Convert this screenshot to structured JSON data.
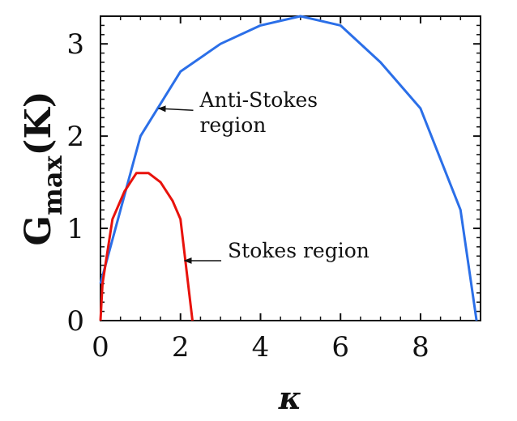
{
  "chart_data": {
    "type": "line",
    "title": "",
    "xlabel": "κ",
    "ylabel": {
      "main": "G",
      "subscript": "max",
      "suffix": "(K)"
    },
    "xlim": [
      0,
      9.5
    ],
    "ylim": [
      0,
      3.3
    ],
    "xticks": [
      0,
      2,
      4,
      6,
      8
    ],
    "xtick_labels": [
      "0",
      "2",
      "4",
      "6",
      "8"
    ],
    "yticks": [
      0,
      1,
      2,
      3
    ],
    "ytick_labels": [
      "0",
      "1",
      "2",
      "3"
    ],
    "grid": false,
    "legend": false,
    "series": [
      {
        "color": "#2b6fe8",
        "x": [
          0,
          1,
          2,
          3,
          4,
          5,
          6,
          7,
          8,
          9,
          9.4
        ],
        "y": [
          0.4,
          2.0,
          2.7,
          3.0,
          3.2,
          3.3,
          3.2,
          2.8,
          2.3,
          1.2,
          0.0
        ]
      },
      {
        "color": "#e8120c",
        "x": [
          0,
          0.05,
          0.3,
          0.6,
          0.9,
          1.2,
          1.5,
          1.8,
          2.0,
          2.3
        ],
        "y": [
          0.0,
          0.4,
          1.1,
          1.4,
          1.6,
          1.6,
          1.5,
          1.3,
          1.1,
          0.0
        ]
      }
    ],
    "annotations": [
      {
        "lines": [
          "Anti-Stokes",
          "region"
        ],
        "arrow_from": [
          2.4,
          2.28
        ],
        "arrow_to": [
          1.45,
          2.3
        ]
      },
      {
        "lines": [
          "Stokes region"
        ],
        "arrow_from": [
          3.1,
          0.65
        ],
        "arrow_to": [
          2.1,
          0.65
        ]
      }
    ]
  }
}
